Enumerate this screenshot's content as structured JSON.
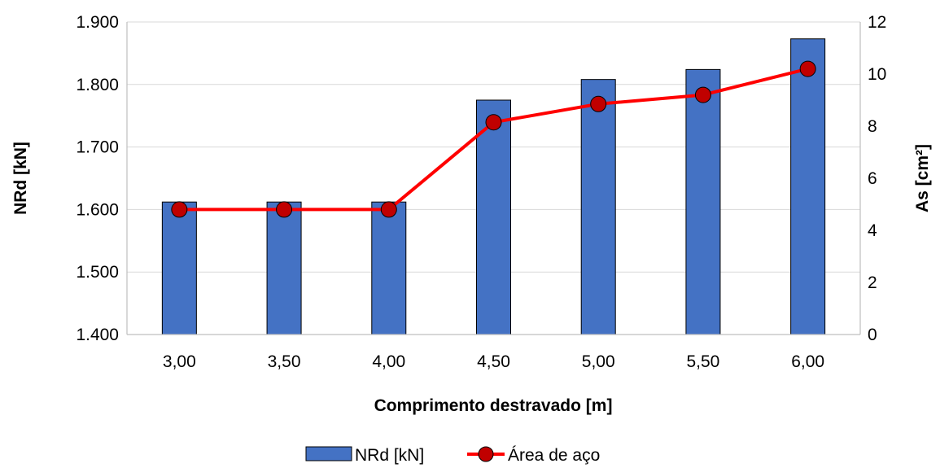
{
  "chart_data": {
    "type": "bar+line",
    "title": "",
    "xlabel": "Comprimento destravado [m]",
    "ylabel_left": "NRd [kN]",
    "ylabel_right": "As [cm²]",
    "categories": [
      "3,00",
      "3,50",
      "4,00",
      "4,50",
      "5,00",
      "5,50",
      "6,00"
    ],
    "y_left": {
      "lim": [
        1400,
        1900
      ],
      "ticks": [
        1400,
        1500,
        1600,
        1700,
        1800,
        1900
      ],
      "tick_labels": [
        "1.400",
        "1.500",
        "1.600",
        "1.700",
        "1.800",
        "1.900"
      ]
    },
    "y_right": {
      "lim": [
        0,
        12
      ],
      "ticks": [
        0,
        2,
        4,
        6,
        8,
        10,
        12
      ],
      "tick_labels": [
        "0",
        "2",
        "4",
        "6",
        "8",
        "10",
        "12"
      ]
    },
    "grid": "horizontal",
    "legend_position": "bottom",
    "series": [
      {
        "name": "NRd [kN]",
        "kind": "bar",
        "axis": "left",
        "color": "#4472C4",
        "values": [
          1612,
          1612,
          1612,
          1775,
          1808,
          1824,
          1873
        ]
      },
      {
        "name": "Área de aço",
        "kind": "line",
        "axis": "right",
        "color": "#FF0000",
        "marker_color": "#C00000",
        "values": [
          4.8,
          4.8,
          4.8,
          8.15,
          8.85,
          9.2,
          10.2
        ]
      }
    ]
  }
}
